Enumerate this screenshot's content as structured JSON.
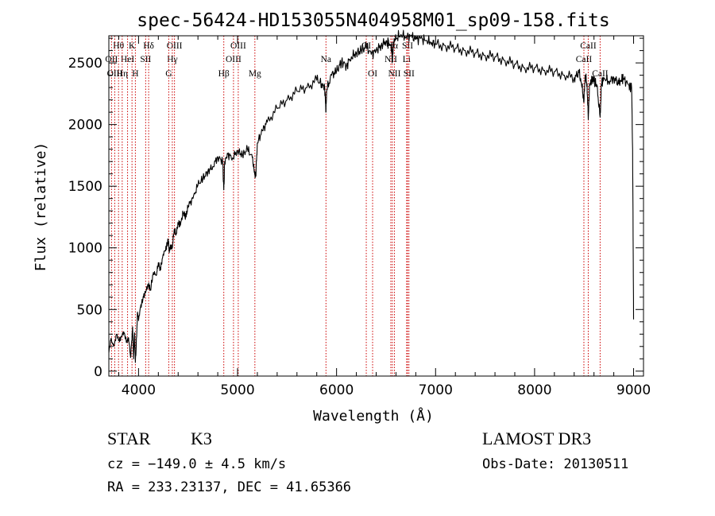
{
  "chart_data": {
    "type": "line",
    "title": "spec-56424-HD153055N404958M01_sp09-158.fits",
    "xlabel": "Wavelength (Å)",
    "ylabel": "Flux (relative)",
    "xlim": [
      3700,
      9100
    ],
    "ylim": [
      -40,
      2720
    ],
    "x_ticks": [
      4000,
      5000,
      6000,
      7000,
      8000,
      9000
    ],
    "y_ticks": [
      0,
      500,
      1000,
      1500,
      2000,
      2500
    ],
    "series": [
      {
        "name": "flux",
        "x": [
          3700,
          3720,
          3750,
          3780,
          3800,
          3820,
          3850,
          3880,
          3900,
          3920,
          3940,
          3950,
          3960,
          3968,
          3975,
          3990,
          4000,
          4020,
          4050,
          4080,
          4100,
          4120,
          4150,
          4180,
          4200,
          4220,
          4250,
          4280,
          4300,
          4310,
          4320,
          4340,
          4360,
          4380,
          4400,
          4420,
          4450,
          4480,
          4500,
          4550,
          4600,
          4650,
          4700,
          4750,
          4800,
          4850,
          4861,
          4870,
          4900,
          4950,
          5000,
          5050,
          5100,
          5150,
          5170,
          5184,
          5200,
          5250,
          5300,
          5400,
          5500,
          5600,
          5700,
          5800,
          5850,
          5880,
          5893,
          5900,
          5950,
          6000,
          6050,
          6100,
          6150,
          6200,
          6250,
          6300,
          6350,
          6400,
          6450,
          6500,
          6550,
          6563,
          6575,
          6600,
          6650,
          6700,
          6750,
          6800,
          6850,
          6900,
          6950,
          7000,
          7100,
          7200,
          7300,
          7400,
          7500,
          7600,
          7700,
          7800,
          7900,
          8000,
          8100,
          8200,
          8300,
          8400,
          8450,
          8480,
          8498,
          8510,
          8530,
          8542,
          8555,
          8580,
          8600,
          8630,
          8662,
          8675,
          8700,
          8750,
          8800,
          8850,
          8880,
          8900,
          8950,
          8980,
          8990,
          9000
        ],
        "values": [
          150,
          260,
          200,
          300,
          250,
          270,
          320,
          240,
          270,
          110,
          360,
          100,
          310,
          70,
          170,
          480,
          410,
          520,
          600,
          660,
          700,
          660,
          800,
          780,
          880,
          820,
          950,
          1000,
          1070,
          960,
          1010,
          1000,
          1150,
          1110,
          1200,
          1180,
          1280,
          1250,
          1340,
          1400,
          1510,
          1560,
          1620,
          1660,
          1740,
          1700,
          1470,
          1700,
          1760,
          1730,
          1790,
          1750,
          1800,
          1730,
          1610,
          1580,
          1850,
          1950,
          2020,
          2130,
          2200,
          2270,
          2300,
          2360,
          2330,
          2300,
          2100,
          2280,
          2400,
          2430,
          2510,
          2480,
          2550,
          2580,
          2600,
          2630,
          2570,
          2600,
          2640,
          2680,
          2650,
          2520,
          2670,
          2700,
          2730,
          2710,
          2720,
          2690,
          2700,
          2680,
          2670,
          2650,
          2640,
          2620,
          2600,
          2580,
          2560,
          2550,
          2520,
          2490,
          2460,
          2460,
          2440,
          2430,
          2400,
          2380,
          2420,
          2300,
          2180,
          2400,
          2330,
          2040,
          2330,
          2350,
          2360,
          2310,
          2060,
          2320,
          2380,
          2350,
          2380,
          2330,
          2360,
          2370,
          2320,
          2300,
          1800,
          420
        ]
      }
    ],
    "line_markers": [
      {
        "label": "Hθ",
        "wave": 3798,
        "row": 1
      },
      {
        "label": "OII",
        "wave": 3727,
        "row": 2
      },
      {
        "label": "OIII",
        "wave": 3760,
        "row": 3
      },
      {
        "label": "K",
        "wave": 3934,
        "row": 1
      },
      {
        "label": "HeI",
        "wave": 3889,
        "row": 2
      },
      {
        "label": "Hη",
        "wave": 3835,
        "row": 3
      },
      {
        "label": "Hδ",
        "wave": 4102,
        "row": 1
      },
      {
        "label": "SII",
        "wave": 4072,
        "row": 2
      },
      {
        "label": "H",
        "wave": 3968,
        "row": 3
      },
      {
        "label": "OIII",
        "wave": 4363,
        "row": 1
      },
      {
        "label": "Hγ",
        "wave": 4341,
        "row": 2
      },
      {
        "label": "G",
        "wave": 4305,
        "row": 3
      },
      {
        "label": "Hβ",
        "wave": 4861,
        "row": 3
      },
      {
        "label": "OIII",
        "wave": 5007,
        "row": 1
      },
      {
        "label": "OIII",
        "wave": 4959,
        "row": 2
      },
      {
        "label": "Mg",
        "wave": 5175,
        "row": 3
      },
      {
        "label": "Na",
        "wave": 5893,
        "row": 2
      },
      {
        "label": "OI",
        "wave": 6300,
        "row": 1
      },
      {
        "label": "OI",
        "wave": 6364,
        "row": 3
      },
      {
        "label": "Hα",
        "wave": 6563,
        "row": 1
      },
      {
        "label": "SII",
        "wave": 6717,
        "row": 1
      },
      {
        "label": "NII",
        "wave": 6548,
        "row": 2
      },
      {
        "label": "Li",
        "wave": 6708,
        "row": 2
      },
      {
        "label": "NII",
        "wave": 6584,
        "row": 3
      },
      {
        "label": "SII",
        "wave": 6731,
        "row": 3
      },
      {
        "label": "CaII",
        "wave": 8542,
        "row": 1
      },
      {
        "label": "CaII",
        "wave": 8498,
        "row": 2
      },
      {
        "label": "CaII",
        "wave": 8662,
        "row": 3
      }
    ]
  },
  "info": {
    "class_label": "STAR",
    "subclass": "K3",
    "cz": "cz = −149.0 ± 4.5 km/s",
    "coords": "RA = 233.23137, DEC =  41.65366",
    "survey": "LAMOST DR3",
    "obs_date": "Obs-Date: 20130511"
  },
  "colors": {
    "line": "#000000",
    "marker": "#cc0000",
    "axis": "#000000"
  }
}
